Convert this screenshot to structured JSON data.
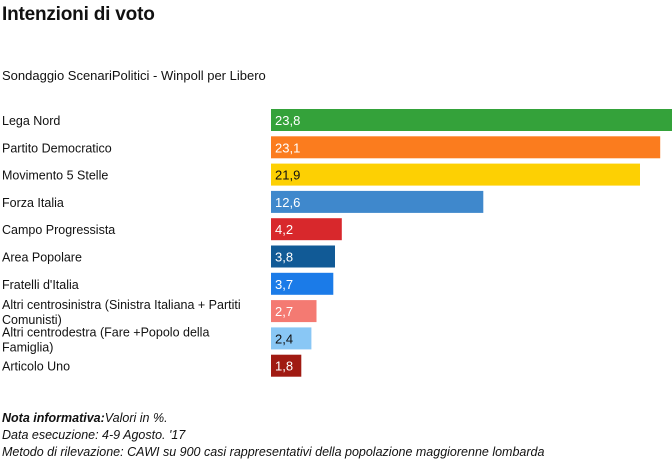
{
  "title": "Intenzioni di voto",
  "subtitle": "Sondaggio ScenariPolitici - Winpoll per Libero",
  "notes": {
    "label": "Nota informativa:",
    "text": "Valori in %.",
    "line2": "Data esecuzione: 4-9 Agosto. '17",
    "line3": "Metodo di rilevazione: CAWI su 900 casi rappresentativi della popolazione maggiorenne lombarda"
  },
  "chart_data": {
    "type": "bar",
    "orientation": "horizontal",
    "title": "Intenzioni di voto",
    "subtitle": "Sondaggio ScenariPolitici - Winpoll per Libero",
    "categories": [
      "Lega Nord",
      "Partito Democratico",
      "Movimento 5 Stelle",
      "Forza Italia",
      "Campo Progressista",
      "Area Popolare",
      "Fratelli d'Italia",
      "Altri centrosinistra (Sinistra Italiana + Partiti Comunisti)",
      "Altri centrodestra (Fare +Popolo della Famiglia)",
      "Articolo Uno"
    ],
    "category_lines": [
      [
        "Lega Nord"
      ],
      [
        "Partito Democratico"
      ],
      [
        "Movimento 5 Stelle"
      ],
      [
        "Forza Italia"
      ],
      [
        "Campo Progressista"
      ],
      [
        "Area Popolare"
      ],
      [
        "Fratelli d'Italia"
      ],
      [
        "Altri centrosinistra (Sinistra Italiana + Partiti",
        "Comunisti)"
      ],
      [
        "Altri centrodestra (Fare +Popolo della",
        "Famiglia)"
      ],
      [
        "Articolo Uno"
      ]
    ],
    "values": [
      23.8,
      23.1,
      21.9,
      12.6,
      4.2,
      3.8,
      3.7,
      2.7,
      2.4,
      1.8
    ],
    "value_labels": [
      "23,8",
      "23,1",
      "21,9",
      "12,6",
      "4,2",
      "3,8",
      "3,7",
      "2,7",
      "2,4",
      "1,8"
    ],
    "colors": [
      "#34a23a",
      "#fb7c1e",
      "#fdd003",
      "#3f88cc",
      "#d8282c",
      "#115a96",
      "#1b7be8",
      "#f47a72",
      "#89c7f5",
      "#a01a12"
    ],
    "label_colors": [
      "#ffffff",
      "#ffffff",
      "#111111",
      "#ffffff",
      "#ffffff",
      "#ffffff",
      "#ffffff",
      "#ffffff",
      "#111111",
      "#ffffff"
    ],
    "xlim": [
      0,
      23.8
    ],
    "grid": false,
    "legend": "none"
  }
}
